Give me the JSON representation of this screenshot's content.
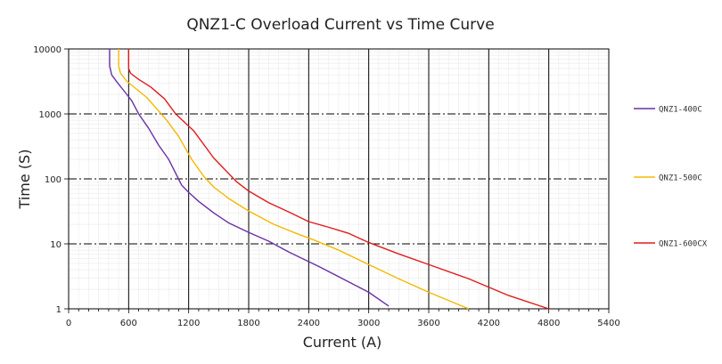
{
  "chart_data": {
    "type": "line",
    "title": "QNZ1-C Overload Current  vs  Time Curve",
    "xlabel": "Current (A)",
    "ylabel": "Time (S)",
    "xlim": [
      0,
      5400
    ],
    "ylim": [
      1,
      10000
    ],
    "y_scale": "log",
    "x_ticks": [
      "0",
      "600",
      "1200",
      "1800",
      "2400",
      "3000",
      "3600",
      "4200",
      "4800",
      "5400"
    ],
    "y_ticks": [
      "1",
      "10",
      "100",
      "1000",
      "10000"
    ],
    "grid": true,
    "legend_position": "right",
    "series": [
      {
        "name": "QNZ1-400C",
        "color": "#6a2fa8",
        "points": [
          [
            410,
            10000
          ],
          [
            410,
            5500
          ],
          [
            430,
            4000
          ],
          [
            490,
            3000
          ],
          [
            560,
            2200
          ],
          [
            630,
            1600
          ],
          [
            700,
            1000
          ],
          [
            800,
            600
          ],
          [
            900,
            330
          ],
          [
            1000,
            200
          ],
          [
            1130,
            80
          ],
          [
            1200,
            62
          ],
          [
            1300,
            45
          ],
          [
            1450,
            30
          ],
          [
            1600,
            21
          ],
          [
            1800,
            15
          ],
          [
            2000,
            11
          ],
          [
            2200,
            7.5
          ],
          [
            2500,
            4.5
          ],
          [
            2800,
            2.6
          ],
          [
            3000,
            1.8
          ],
          [
            3200,
            1.1
          ]
        ]
      },
      {
        "name": "QNZ1-500C",
        "color": "#f5b800",
        "points": [
          [
            500,
            10000
          ],
          [
            500,
            5500
          ],
          [
            520,
            4200
          ],
          [
            580,
            3200
          ],
          [
            680,
            2400
          ],
          [
            780,
            1800
          ],
          [
            880,
            1200
          ],
          [
            980,
            800
          ],
          [
            1100,
            450
          ],
          [
            1230,
            200
          ],
          [
            1350,
            110
          ],
          [
            1450,
            75
          ],
          [
            1600,
            50
          ],
          [
            1800,
            32
          ],
          [
            2050,
            20
          ],
          [
            2300,
            14
          ],
          [
            2450,
            11.5
          ],
          [
            2700,
            8
          ],
          [
            3000,
            4.8
          ],
          [
            3300,
            2.9
          ],
          [
            3600,
            1.8
          ],
          [
            4000,
            1
          ]
        ]
      },
      {
        "name": "QNZ1-600CX",
        "color": "#e01b1b",
        "points": [
          [
            600,
            10000
          ],
          [
            600,
            5000
          ],
          [
            620,
            4200
          ],
          [
            700,
            3400
          ],
          [
            820,
            2600
          ],
          [
            960,
            1700
          ],
          [
            1070,
            1000
          ],
          [
            1250,
            550
          ],
          [
            1450,
            210
          ],
          [
            1680,
            90
          ],
          [
            1800,
            65
          ],
          [
            2000,
            43
          ],
          [
            2200,
            31
          ],
          [
            2400,
            22
          ],
          [
            2600,
            18
          ],
          [
            2800,
            14.5
          ],
          [
            3000,
            10.5
          ],
          [
            3300,
            7
          ],
          [
            3600,
            4.8
          ],
          [
            4000,
            2.9
          ],
          [
            4400,
            1.6
          ],
          [
            4800,
            1
          ]
        ]
      }
    ]
  }
}
